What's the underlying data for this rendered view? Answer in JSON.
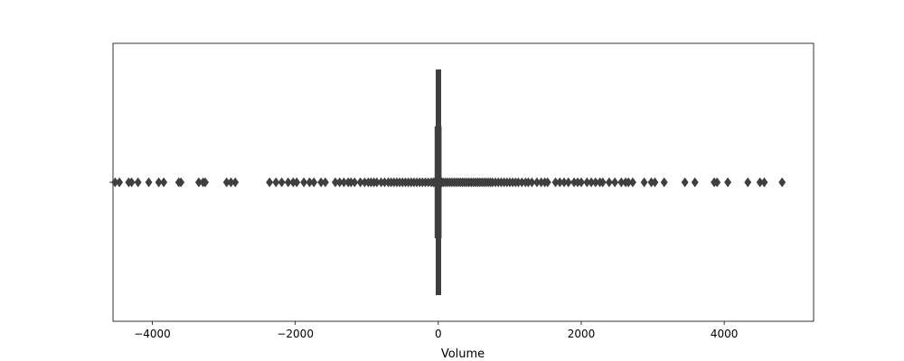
{
  "chart_data": {
    "type": "box",
    "orientation": "horizontal",
    "title": "",
    "xlabel": "Volume",
    "ylabel": "",
    "xlim": [
      -4550,
      5250
    ],
    "xticks": [
      -4000,
      -2000,
      0,
      2000,
      4000
    ],
    "xtick_labels": [
      "−4000",
      "−2000",
      "0",
      "2000",
      "4000"
    ],
    "grid": false,
    "box": {
      "q1": -4,
      "median": 0,
      "q3": 4,
      "whisker_low": -35,
      "whisker_high": 30
    },
    "outliers": [
      -4520,
      -4460,
      -4330,
      -4290,
      -4200,
      -4050,
      -3910,
      -3840,
      -3630,
      -3600,
      -3350,
      -3290,
      -3260,
      -2960,
      -2900,
      -2840,
      -2360,
      -2270,
      -2190,
      -2100,
      -2030,
      -1980,
      -1880,
      -1800,
      -1740,
      -1640,
      -1580,
      -1440,
      -1380,
      -1320,
      -1260,
      -1220,
      -1170,
      -1090,
      -1030,
      -980,
      -940,
      -900,
      -860,
      -800,
      -750,
      -700,
      -660,
      -620,
      -580,
      -540,
      -500,
      -460,
      -420,
      -380,
      -340,
      -300,
      -260,
      -220,
      -180,
      -140,
      -100,
      -70,
      -50,
      -40,
      40,
      50,
      70,
      100,
      130,
      160,
      190,
      220,
      250,
      280,
      310,
      340,
      370,
      400,
      430,
      460,
      490,
      520,
      550,
      580,
      610,
      640,
      670,
      700,
      730,
      760,
      800,
      840,
      880,
      920,
      960,
      1000,
      1040,
      1080,
      1120,
      1170,
      1220,
      1260,
      1310,
      1380,
      1440,
      1490,
      1530,
      1640,
      1700,
      1760,
      1820,
      1900,
      1950,
      2000,
      2080,
      2140,
      2200,
      2260,
      2300,
      2390,
      2470,
      2560,
      2620,
      2660,
      2720,
      2880,
      2980,
      3030,
      3160,
      3450,
      3590,
      3860,
      3900,
      4050,
      4330,
      4500,
      4560,
      4810
    ],
    "colors": {
      "box": "#3f3f3f",
      "outlier_fill": "#3f3f3f",
      "frame": "#000000"
    }
  }
}
